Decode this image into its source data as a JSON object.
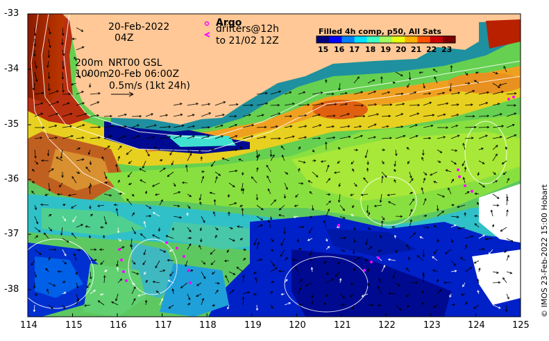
{
  "map": {
    "date_label": "20-Feb-2022",
    "time_label": "04Z",
    "contour_label_200": "200m",
    "contour_label_1000": "1000m",
    "nrt_label": "NRT00 GSL",
    "nrt_time": "20-Feb 06:00Z",
    "scale_label": "0.5m/s (1kt 24h)",
    "argo_label": "Argo",
    "drifters_label": "drifters@12h",
    "drifters_to": "to 21/02 12Z",
    "colorbar_title": "Filled 4h comp, p50, All Sats",
    "colorbar_ticks": [
      "15",
      "16",
      "17",
      "18",
      "19",
      "20",
      "21",
      "22",
      "23"
    ],
    "colorbar_colors": [
      "#00007f",
      "#0000ff",
      "#0080ff",
      "#00e0ff",
      "#40ffc0",
      "#a0ff60",
      "#e8ff10",
      "#ffb000",
      "#ff5000",
      "#cc0000",
      "#800000"
    ],
    "x_ticks": [
      "114",
      "115",
      "116",
      "117",
      "118",
      "119",
      "120",
      "121",
      "122",
      "123",
      "124",
      "125"
    ],
    "y_ticks": [
      "-33",
      "-34",
      "-35",
      "-36",
      "-37",
      "-38"
    ],
    "credit": "© IMOS 23-Feb-2022 15:00 Hobart",
    "land_color": "#ffc896",
    "drifter_color": "#ff00ff"
  }
}
